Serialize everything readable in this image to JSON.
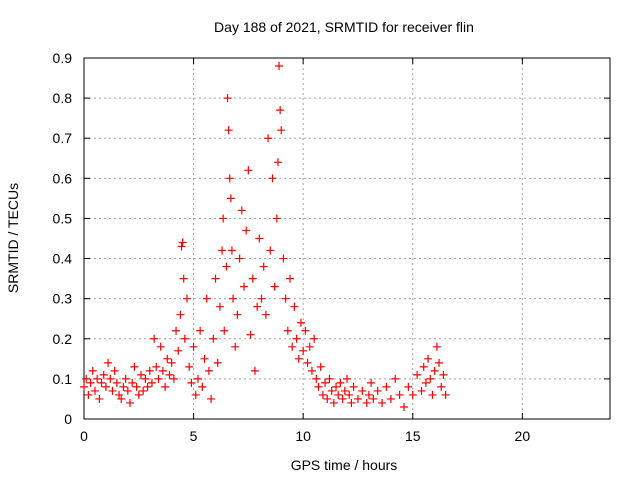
{
  "chart_data": {
    "type": "scatter",
    "title": "Day 188 of 2021, SRMTID for receiver flin",
    "xlabel": "GPS time / hours",
    "ylabel": "SRMTID / TECUs",
    "xlim": [
      0,
      24
    ],
    "ylim": [
      0,
      0.9
    ],
    "x_ticks": [
      0,
      5,
      10,
      15,
      20
    ],
    "y_ticks": [
      0,
      0.1,
      0.2,
      0.3,
      0.4,
      0.5,
      0.6,
      0.7,
      0.8,
      0.9
    ],
    "x_tick_labels": [
      "0",
      "5",
      "10",
      "15",
      "20"
    ],
    "y_tick_labels": [
      "0",
      "0.1",
      "0.2",
      "0.3",
      "0.4",
      "0.5",
      "0.6",
      "0.7",
      "0.8",
      "0.9"
    ],
    "grid": true,
    "marker": "plus",
    "color": "#ff0000",
    "series": [
      {
        "name": "SRMTID",
        "points": [
          [
            0.0,
            0.08
          ],
          [
            0.1,
            0.1
          ],
          [
            0.2,
            0.06
          ],
          [
            0.3,
            0.09
          ],
          [
            0.4,
            0.12
          ],
          [
            0.5,
            0.07
          ],
          [
            0.6,
            0.1
          ],
          [
            0.7,
            0.05
          ],
          [
            0.8,
            0.09
          ],
          [
            0.9,
            0.11
          ],
          [
            1.0,
            0.08
          ],
          [
            1.1,
            0.14
          ],
          [
            1.2,
            0.1
          ],
          [
            1.3,
            0.07
          ],
          [
            1.4,
            0.12
          ],
          [
            1.5,
            0.09
          ],
          [
            1.6,
            0.06
          ],
          [
            1.7,
            0.05
          ],
          [
            1.8,
            0.08
          ],
          [
            1.9,
            0.1
          ],
          [
            2.0,
            0.07
          ],
          [
            2.1,
            0.04
          ],
          [
            2.2,
            0.09
          ],
          [
            2.3,
            0.13
          ],
          [
            2.4,
            0.08
          ],
          [
            2.5,
            0.06
          ],
          [
            2.6,
            0.11
          ],
          [
            2.7,
            0.07
          ],
          [
            2.8,
            0.1
          ],
          [
            2.9,
            0.08
          ],
          [
            3.0,
            0.12
          ],
          [
            3.1,
            0.09
          ],
          [
            3.2,
            0.2
          ],
          [
            3.3,
            0.13
          ],
          [
            3.4,
            0.1
          ],
          [
            3.5,
            0.18
          ],
          [
            3.6,
            0.12
          ],
          [
            3.7,
            0.08
          ],
          [
            3.8,
            0.15
          ],
          [
            3.9,
            0.11
          ],
          [
            4.0,
            0.14
          ],
          [
            4.1,
            0.1
          ],
          [
            4.2,
            0.22
          ],
          [
            4.3,
            0.17
          ],
          [
            4.4,
            0.26
          ],
          [
            4.45,
            0.43
          ],
          [
            4.5,
            0.44
          ],
          [
            4.55,
            0.35
          ],
          [
            4.6,
            0.2
          ],
          [
            4.7,
            0.3
          ],
          [
            4.8,
            0.13
          ],
          [
            4.9,
            0.09
          ],
          [
            5.0,
            0.18
          ],
          [
            5.1,
            0.06
          ],
          [
            5.2,
            0.1
          ],
          [
            5.3,
            0.22
          ],
          [
            5.4,
            0.08
          ],
          [
            5.5,
            0.15
          ],
          [
            5.6,
            0.3
          ],
          [
            5.7,
            0.12
          ],
          [
            5.8,
            0.05
          ],
          [
            5.9,
            0.2
          ],
          [
            6.0,
            0.35
          ],
          [
            6.1,
            0.14
          ],
          [
            6.2,
            0.28
          ],
          [
            6.3,
            0.42
          ],
          [
            6.35,
            0.5
          ],
          [
            6.4,
            0.22
          ],
          [
            6.5,
            0.38
          ],
          [
            6.55,
            0.8
          ],
          [
            6.6,
            0.72
          ],
          [
            6.65,
            0.6
          ],
          [
            6.7,
            0.55
          ],
          [
            6.75,
            0.42
          ],
          [
            6.8,
            0.3
          ],
          [
            6.9,
            0.18
          ],
          [
            7.0,
            0.26
          ],
          [
            7.1,
            0.4
          ],
          [
            7.2,
            0.52
          ],
          [
            7.3,
            0.33
          ],
          [
            7.4,
            0.47
          ],
          [
            7.5,
            0.62
          ],
          [
            7.6,
            0.21
          ],
          [
            7.7,
            0.35
          ],
          [
            7.8,
            0.12
          ],
          [
            7.9,
            0.28
          ],
          [
            8.0,
            0.45
          ],
          [
            8.1,
            0.3
          ],
          [
            8.2,
            0.38
          ],
          [
            8.3,
            0.26
          ],
          [
            8.4,
            0.7
          ],
          [
            8.5,
            0.42
          ],
          [
            8.6,
            0.6
          ],
          [
            8.7,
            0.33
          ],
          [
            8.8,
            0.5
          ],
          [
            8.85,
            0.64
          ],
          [
            8.9,
            0.88
          ],
          [
            8.95,
            0.77
          ],
          [
            9.0,
            0.72
          ],
          [
            9.1,
            0.4
          ],
          [
            9.2,
            0.3
          ],
          [
            9.3,
            0.22
          ],
          [
            9.4,
            0.35
          ],
          [
            9.5,
            0.18
          ],
          [
            9.6,
            0.28
          ],
          [
            9.7,
            0.2
          ],
          [
            9.8,
            0.15
          ],
          [
            9.9,
            0.24
          ],
          [
            10.0,
            0.17
          ],
          [
            10.1,
            0.22
          ],
          [
            10.2,
            0.14
          ],
          [
            10.3,
            0.18
          ],
          [
            10.4,
            0.12
          ],
          [
            10.5,
            0.2
          ],
          [
            10.6,
            0.1
          ],
          [
            10.7,
            0.08
          ],
          [
            10.8,
            0.13
          ],
          [
            10.9,
            0.06
          ],
          [
            11.0,
            0.09
          ],
          [
            11.1,
            0.05
          ],
          [
            11.2,
            0.1
          ],
          [
            11.3,
            0.07
          ],
          [
            11.4,
            0.04
          ],
          [
            11.5,
            0.08
          ],
          [
            11.6,
            0.06
          ],
          [
            11.7,
            0.09
          ],
          [
            11.8,
            0.05
          ],
          [
            11.9,
            0.07
          ],
          [
            12.0,
            0.1
          ],
          [
            12.1,
            0.06
          ],
          [
            12.2,
            0.04
          ],
          [
            12.3,
            0.08
          ],
          [
            12.5,
            0.05
          ],
          [
            12.7,
            0.07
          ],
          [
            12.9,
            0.04
          ],
          [
            13.0,
            0.06
          ],
          [
            13.1,
            0.09
          ],
          [
            13.2,
            0.05
          ],
          [
            13.4,
            0.07
          ],
          [
            13.6,
            0.04
          ],
          [
            13.8,
            0.08
          ],
          [
            14.0,
            0.05
          ],
          [
            14.2,
            0.1
          ],
          [
            14.4,
            0.06
          ],
          [
            14.6,
            0.03
          ],
          [
            14.8,
            0.08
          ],
          [
            15.0,
            0.06
          ],
          [
            15.2,
            0.11
          ],
          [
            15.4,
            0.07
          ],
          [
            15.5,
            0.13
          ],
          [
            15.6,
            0.09
          ],
          [
            15.7,
            0.15
          ],
          [
            15.8,
            0.1
          ],
          [
            15.9,
            0.06
          ],
          [
            16.0,
            0.12
          ],
          [
            16.1,
            0.18
          ],
          [
            16.2,
            0.14
          ],
          [
            16.3,
            0.08
          ],
          [
            16.4,
            0.11
          ],
          [
            16.5,
            0.06
          ]
        ]
      }
    ]
  }
}
